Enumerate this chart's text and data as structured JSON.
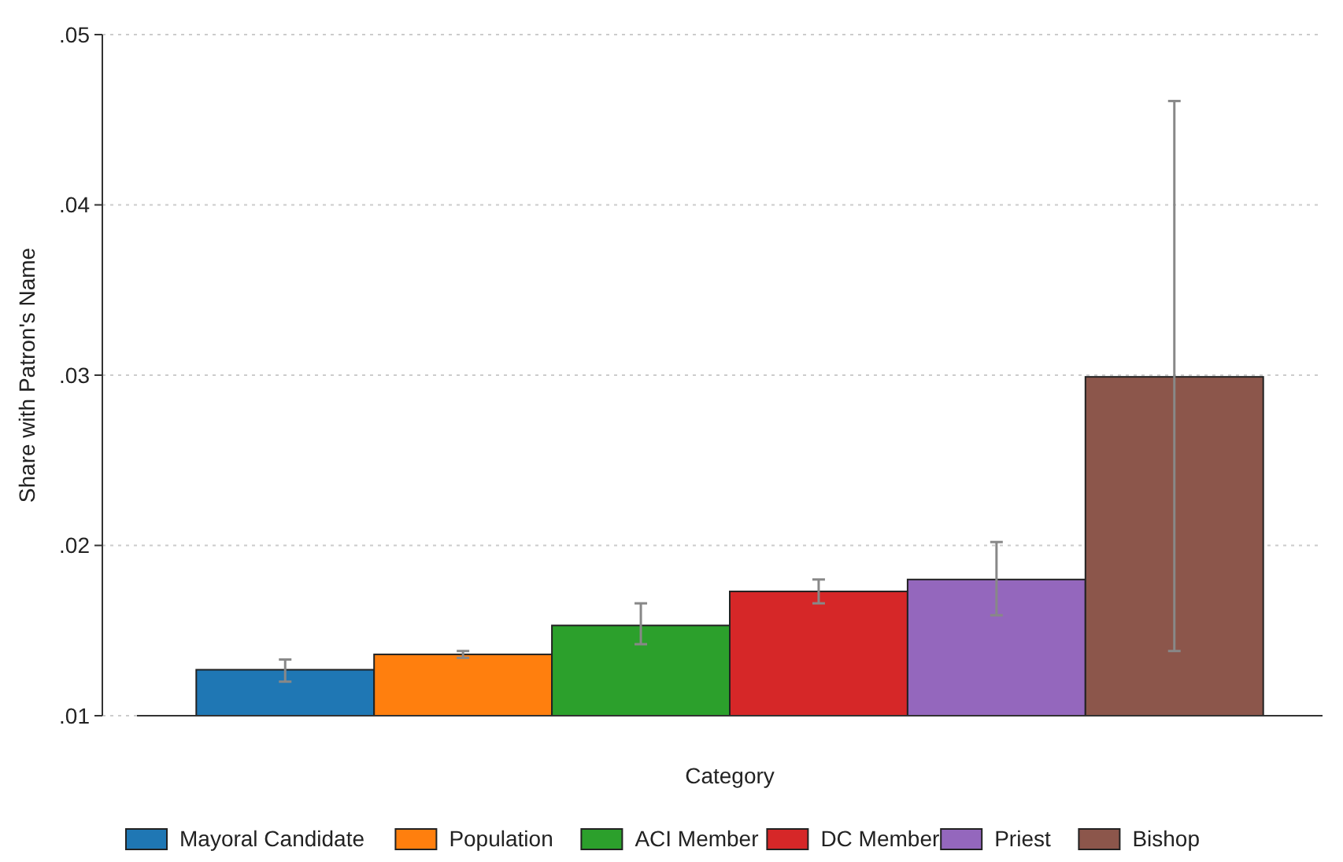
{
  "chart_data": {
    "type": "bar",
    "xlabel": "Category",
    "ylabel": "Share with Patron's Name",
    "categories": [
      null
    ],
    "series": [
      {
        "name": "Mayoral Candidate",
        "color": "#1f77b4",
        "values": [
          0.0127
        ],
        "errors": [
          [
            0.012,
            0.0133
          ]
        ]
      },
      {
        "name": "Population",
        "color": "#ff7f0e",
        "values": [
          0.0136
        ],
        "errors": [
          [
            0.0134,
            0.0138
          ]
        ]
      },
      {
        "name": "ACI Member",
        "color": "#2ca02c",
        "values": [
          0.0153
        ],
        "errors": [
          [
            0.0142,
            0.0166
          ]
        ]
      },
      {
        "name": "DC Member",
        "color": "#d62728",
        "values": [
          0.0173
        ],
        "errors": [
          [
            0.0166,
            0.018
          ]
        ]
      },
      {
        "name": "Priest",
        "color": "#9467bd",
        "values": [
          0.018
        ],
        "errors": [
          [
            0.0159,
            0.0202
          ]
        ]
      },
      {
        "name": "Bishop",
        "color": "#8c564b",
        "values": [
          0.0299
        ],
        "errors": [
          [
            0.0138,
            0.0461
          ]
        ]
      }
    ],
    "ylim": [
      0.01,
      0.05
    ],
    "yticks": [
      {
        "value": 0.01,
        "label": ".01"
      },
      {
        "value": 0.02,
        "label": ".02"
      },
      {
        "value": 0.03,
        "label": ".03"
      },
      {
        "value": 0.04,
        "label": ".04"
      },
      {
        "value": 0.05,
        "label": ".05"
      }
    ],
    "grid": "y",
    "legend": "bottom"
  }
}
